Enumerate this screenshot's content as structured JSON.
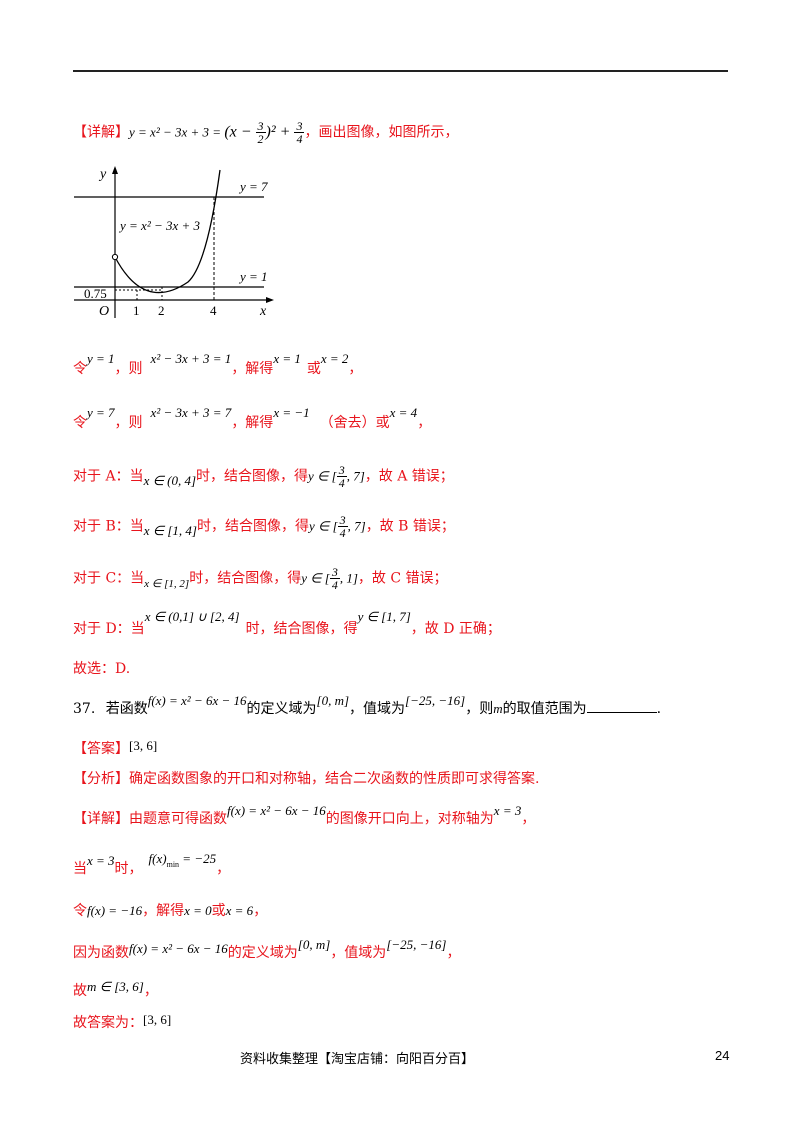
{
  "header_rule": true,
  "sec1": {
    "tag": "【详解】",
    "formula_a": "y = x² − 3x + 3 = ",
    "formula_b": "(x − ",
    "frac1_num": "3",
    "frac1_den": "2",
    "formula_c": ")² + ",
    "frac2_num": "3",
    "frac2_den": "4",
    "tail": "，画出图像，如图所示，"
  },
  "graph": {
    "y_axis": "y",
    "x_axis": "x",
    "origin": "O",
    "line_y7": "y = 7",
    "line_y1": "y = 1",
    "curve_label": "y = x² − 3x + 3",
    "val_075": "0.75",
    "tick_1": "1",
    "tick_2": "2",
    "tick_4": "4"
  },
  "line1": {
    "a": "令",
    "b": "y = 1",
    "c": "，则",
    "d": "x² − 3x + 3 = 1",
    "e": "，解得",
    "f": "x = 1",
    "g": "或",
    "h": "x = 2",
    "i": "，"
  },
  "line2": {
    "a": "令",
    "b": "y = 7",
    "c": "，则",
    "d": "x² − 3x + 3 = 7",
    "e": "，解得",
    "f": "x = −1",
    "g": "（舍去）或",
    "h": "x = 4",
    "i": "，"
  },
  "optA": {
    "a": "对于 A：当",
    "b": "x ∈ (0, 4]",
    "c": "时，结合图像，得",
    "d": "y ∈ [",
    "n": "3",
    "den": "4",
    "e": ", 7]",
    "f": "，故 A 错误；"
  },
  "optB": {
    "a": "对于 B：当",
    "b": "x ∈ [1, 4]",
    "c": "时，结合图像，得",
    "d": "y ∈ [",
    "n": "3",
    "den": "4",
    "e": ", 7]",
    "f": "，故 B 错误；"
  },
  "optC": {
    "a": "对于 C：当",
    "b": "x ∈ [1, 2]",
    "c": "时，结合图像，得",
    "d": "y ∈ [",
    "n": "3",
    "den": "4",
    "e": ", 1]",
    "f": "，故 C 错误；"
  },
  "optD": {
    "a": "对于 D：当",
    "b": "x ∈ (0,1] ∪ [2, 4]",
    "c": "时，结合图像，得",
    "d": "y ∈ [1, 7]",
    "f": "，故 D 正确；"
  },
  "choose": "故选：D.",
  "q37": {
    "num": "37.",
    "a": "若函数",
    "b": "f(x) = x² − 6x − 16",
    "c": "的定义域为",
    "d": "[0, m]",
    "e": "，值域为",
    "f": "[−25, −16]",
    "g": "，则",
    "h": "m",
    "i": "的取值范围为",
    "j": "."
  },
  "ans": {
    "tag": "【答案】",
    "val": "[3, 6]"
  },
  "ana": {
    "tag": "【分析】",
    "text": "确定函数图象的开口和对称轴，结合二次函数的性质即可求得答案."
  },
  "det": {
    "tag": "【详解】",
    "a": "由题意可得函数",
    "b": "f(x) = x² − 6x − 16",
    "c": "的图像开口向上，对称轴为",
    "d": "x = 3",
    "e": "，"
  },
  "when": {
    "a": "当",
    "b": "x = 3",
    "c": "时，",
    "d": "f(x)",
    "sub": "min",
    "e": " = −25",
    "f": "，"
  },
  "ling": {
    "a": "令",
    "b": "f(x) = −16",
    "c": "，解得",
    "d": "x = 0",
    "e": "或",
    "f": "x = 6",
    "g": "，"
  },
  "because": {
    "a": "因为函数",
    "b": "f(x) = x² − 6x − 16",
    "c": "的定义域为",
    "d": "[0, m]",
    "e": "，值域为",
    "f": "[−25, −16]",
    "g": "，"
  },
  "gu": {
    "a": "故",
    "b": "m ∈ [3, 6]",
    "c": "，"
  },
  "final": {
    "a": "故答案为：",
    "b": "[3, 6]"
  },
  "footer": {
    "text": "资料收集整理【淘宝店铺：向阳百分百】",
    "page": "24"
  }
}
